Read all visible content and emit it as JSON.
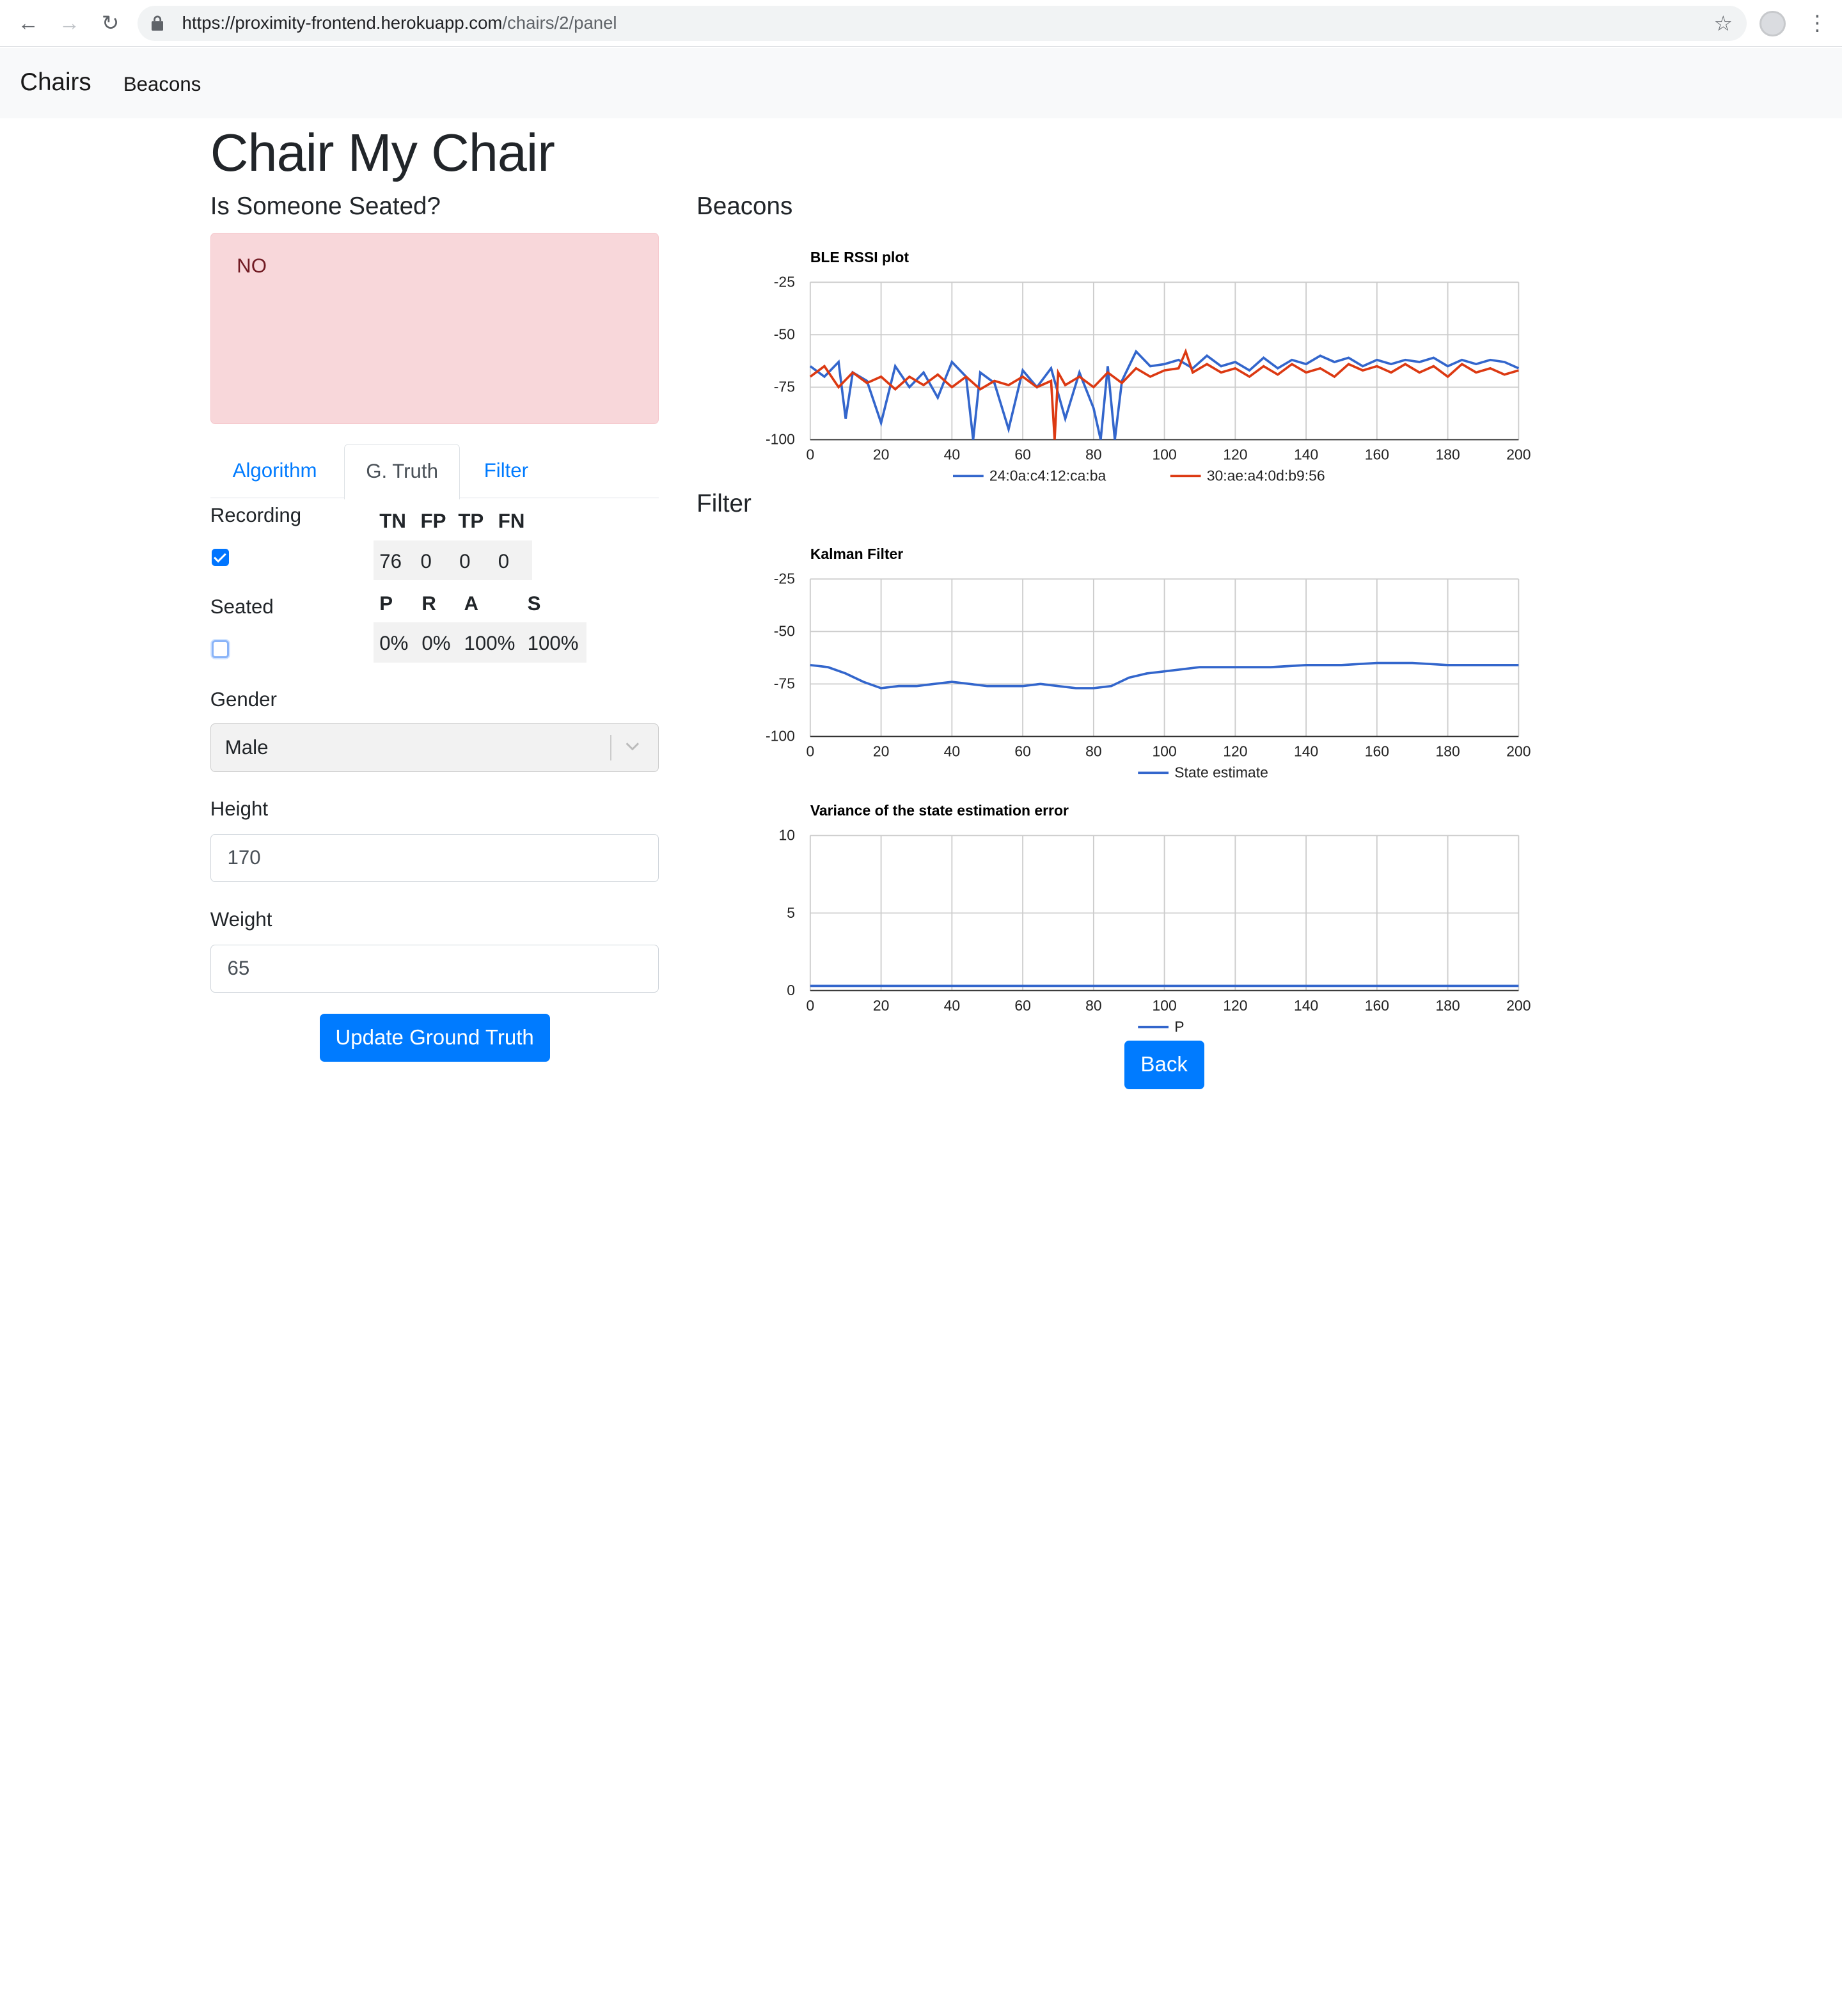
{
  "browser": {
    "url_host": "https://proximity-frontend.herokuapp.com",
    "url_path": "/chairs/2/panel"
  },
  "navbar": {
    "brand": "Chairs",
    "link": "Beacons"
  },
  "page_title": "Chair My Chair",
  "seated_heading": "Is Someone Seated?",
  "seated_value": "NO",
  "tabs": [
    {
      "label": "Algorithm"
    },
    {
      "label": "G. Truth"
    },
    {
      "label": "Filter"
    }
  ],
  "active_tab": "G. Truth",
  "form": {
    "recording_label": "Recording",
    "recording_checked": true,
    "seated_label": "Seated",
    "seated_checked": false,
    "gender_label": "Gender",
    "gender_value": "Male",
    "height_label": "Height",
    "height_value": "170",
    "weight_label": "Weight",
    "weight_value": "65",
    "submit_label": "Update Ground Truth"
  },
  "stats": {
    "headers1": [
      "TN",
      "FP",
      "TP",
      "FN"
    ],
    "values1": [
      "76",
      "0",
      "0",
      "0"
    ],
    "headers2": [
      "P",
      "R",
      "A",
      "S"
    ],
    "values2": [
      "0%",
      "0%",
      "100%",
      "100%"
    ]
  },
  "beacons_heading": "Beacons",
  "filter_heading": "Filter",
  "back_label": "Back",
  "colors": {
    "series1": "#3366cc",
    "series2": "#dc3912",
    "primary": "#007bff",
    "alert_bg": "#f8d7da"
  },
  "chart_data": [
    {
      "type": "line",
      "title": "BLE RSSI plot",
      "xlim": [
        0,
        200
      ],
      "ylim": [
        -100,
        -25
      ],
      "xticks": [
        0,
        20,
        40,
        60,
        80,
        100,
        120,
        140,
        160,
        180,
        200
      ],
      "yticks": [
        -25,
        -50,
        -75,
        -100
      ],
      "legend_position": "bottom",
      "series": [
        {
          "name": "24:0a:c4:12:ca:ba",
          "color": "#3366cc",
          "x": [
            0,
            4,
            8,
            10,
            12,
            16,
            20,
            24,
            28,
            32,
            36,
            40,
            44,
            46,
            48,
            52,
            56,
            60,
            64,
            68,
            72,
            76,
            80,
            82,
            84,
            86,
            88,
            90,
            92,
            96,
            100,
            104,
            108,
            112,
            116,
            120,
            124,
            128,
            132,
            136,
            140,
            144,
            148,
            152,
            156,
            160,
            164,
            168,
            172,
            176,
            180,
            184,
            188,
            192,
            196,
            200
          ],
          "y": [
            -65,
            -70,
            -63,
            -90,
            -68,
            -72,
            -92,
            -65,
            -75,
            -68,
            -80,
            -63,
            -70,
            -100,
            -68,
            -73,
            -95,
            -67,
            -75,
            -66,
            -90,
            -68,
            -85,
            -100,
            -65,
            -100,
            -72,
            -65,
            -58,
            -65,
            -64,
            -62,
            -66,
            -60,
            -65,
            -63,
            -67,
            -61,
            -66,
            -62,
            -64,
            -60,
            -63,
            -61,
            -65,
            -62,
            -64,
            -62,
            -63,
            -61,
            -65,
            -62,
            -64,
            -62,
            -63,
            -66
          ]
        },
        {
          "name": "30:ae:a4:0d:b9:56",
          "color": "#dc3912",
          "x": [
            0,
            4,
            8,
            12,
            16,
            20,
            24,
            28,
            32,
            36,
            40,
            44,
            48,
            52,
            56,
            60,
            64,
            68,
            69,
            70,
            72,
            76,
            80,
            84,
            88,
            92,
            96,
            100,
            104,
            106,
            108,
            112,
            116,
            120,
            124,
            128,
            132,
            136,
            140,
            144,
            148,
            152,
            156,
            160,
            164,
            168,
            172,
            176,
            180,
            184,
            188,
            192,
            196,
            200
          ],
          "y": [
            -70,
            -65,
            -75,
            -68,
            -73,
            -70,
            -76,
            -70,
            -74,
            -69,
            -75,
            -70,
            -76,
            -72,
            -74,
            -70,
            -75,
            -72,
            -100,
            -68,
            -74,
            -70,
            -75,
            -68,
            -73,
            -66,
            -70,
            -67,
            -66,
            -58,
            -68,
            -64,
            -68,
            -66,
            -70,
            -65,
            -69,
            -64,
            -68,
            -66,
            -70,
            -64,
            -67,
            -65,
            -68,
            -64,
            -68,
            -65,
            -70,
            -64,
            -68,
            -66,
            -69,
            -67
          ]
        }
      ]
    },
    {
      "type": "line",
      "title": "Kalman Filter",
      "xlim": [
        0,
        200
      ],
      "ylim": [
        -100,
        -25
      ],
      "xticks": [
        0,
        20,
        40,
        60,
        80,
        100,
        120,
        140,
        160,
        180,
        200
      ],
      "yticks": [
        -25,
        -50,
        -75,
        -100
      ],
      "legend_position": "bottom",
      "series": [
        {
          "name": "State estimate",
          "color": "#3366cc",
          "x": [
            0,
            5,
            10,
            15,
            20,
            25,
            30,
            35,
            40,
            45,
            50,
            55,
            60,
            65,
            70,
            75,
            80,
            85,
            90,
            95,
            100,
            110,
            120,
            130,
            140,
            150,
            160,
            170,
            180,
            190,
            200
          ],
          "y": [
            -66,
            -67,
            -70,
            -74,
            -77,
            -76,
            -76,
            -75,
            -74,
            -75,
            -76,
            -76,
            -76,
            -75,
            -76,
            -77,
            -77,
            -76,
            -72,
            -70,
            -69,
            -67,
            -67,
            -67,
            -66,
            -66,
            -65,
            -65,
            -66,
            -66,
            -66
          ]
        }
      ]
    },
    {
      "type": "line",
      "title": "Variance of the state estimation error",
      "xlim": [
        0,
        200
      ],
      "ylim": [
        0,
        10
      ],
      "xticks": [
        0,
        20,
        40,
        60,
        80,
        100,
        120,
        140,
        160,
        180,
        200
      ],
      "yticks": [
        10,
        5,
        0
      ],
      "legend_position": "bottom",
      "series": [
        {
          "name": "P",
          "color": "#3366cc",
          "x": [
            0,
            200
          ],
          "y": [
            0.3,
            0.3
          ]
        }
      ]
    }
  ]
}
